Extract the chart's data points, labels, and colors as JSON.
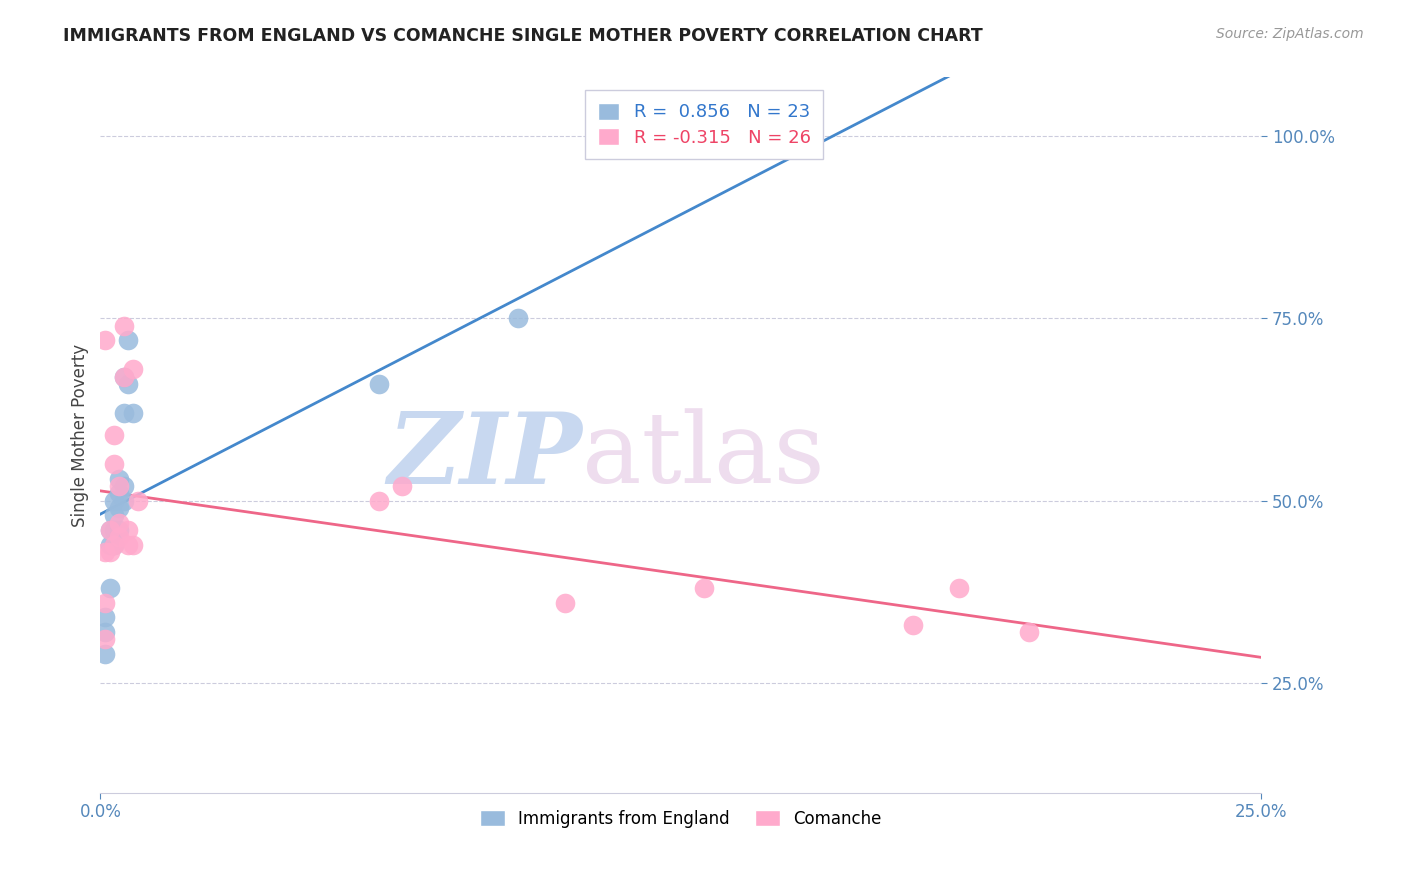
{
  "title": "IMMIGRANTS FROM ENGLAND VS COMANCHE SINGLE MOTHER POVERTY CORRELATION CHART",
  "source": "Source: ZipAtlas.com",
  "ylabel": "Single Mother Poverty",
  "y_ticks": [
    0.25,
    0.5,
    0.75,
    1.0
  ],
  "y_tick_labels": [
    "25.0%",
    "50.0%",
    "75.0%",
    "100.0%"
  ],
  "x_ticks": [
    0.0,
    0.25
  ],
  "x_tick_labels": [
    "0.0%",
    "25.0%"
  ],
  "xlim": [
    0.0,
    0.25
  ],
  "ylim": [
    0.1,
    1.08
  ],
  "england_R": 0.856,
  "england_N": 23,
  "comanche_R": -0.315,
  "comanche_N": 26,
  "england_color": "#99BBDD",
  "comanche_color": "#FFAACC",
  "england_line_color": "#4488CC",
  "comanche_line_color": "#EE6688",
  "watermark_zip_color": "#CCDDF0",
  "watermark_atlas_color": "#DDCCEE",
  "england_x": [
    0.001,
    0.001,
    0.001,
    0.002,
    0.002,
    0.002,
    0.003,
    0.003,
    0.003,
    0.003,
    0.004,
    0.004,
    0.004,
    0.004,
    0.005,
    0.005,
    0.005,
    0.005,
    0.006,
    0.006,
    0.007,
    0.06,
    0.09
  ],
  "england_y": [
    0.29,
    0.32,
    0.34,
    0.38,
    0.44,
    0.46,
    0.44,
    0.46,
    0.48,
    0.5,
    0.46,
    0.49,
    0.51,
    0.53,
    0.5,
    0.52,
    0.62,
    0.67,
    0.66,
    0.72,
    0.62,
    0.66,
    0.75
  ],
  "comanche_x": [
    0.001,
    0.001,
    0.001,
    0.001,
    0.002,
    0.002,
    0.003,
    0.003,
    0.003,
    0.004,
    0.004,
    0.004,
    0.005,
    0.005,
    0.006,
    0.006,
    0.007,
    0.007,
    0.008,
    0.06,
    0.065,
    0.1,
    0.13,
    0.175,
    0.185,
    0.2
  ],
  "comanche_y": [
    0.31,
    0.36,
    0.43,
    0.72,
    0.43,
    0.46,
    0.44,
    0.55,
    0.59,
    0.45,
    0.47,
    0.52,
    0.67,
    0.74,
    0.44,
    0.46,
    0.44,
    0.68,
    0.5,
    0.5,
    0.52,
    0.36,
    0.38,
    0.33,
    0.38,
    0.32
  ],
  "legend_box_color": "#FFFFFF",
  "legend_border_color": "#CCCCDD"
}
